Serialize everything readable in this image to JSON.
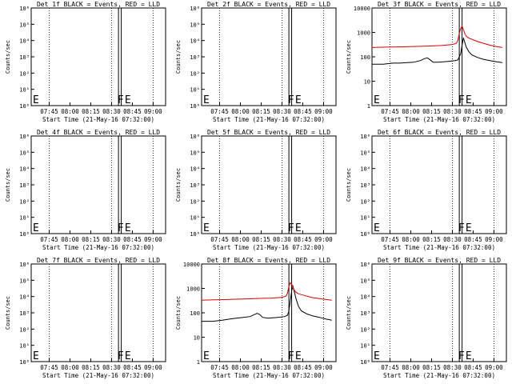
{
  "x_axis": {
    "label": "Start Time (21-May-16 07:32:00)",
    "ticks": [
      "07:45",
      "08:00",
      "08:15",
      "08:30",
      "08:45",
      "09:00"
    ],
    "tick_minutes": [
      13,
      28,
      43,
      58,
      73,
      88
    ],
    "range_minutes": [
      0,
      97
    ]
  },
  "y_axis": {
    "label": "Counts/sec"
  },
  "markers": {
    "flare_labels": [
      "F",
      "E"
    ]
  },
  "colors": {
    "events": "#000000",
    "lld": "#d40000"
  },
  "chart_data": [
    {
      "id": "det1",
      "type": "line",
      "title": "Det 1f BLACK = Events, RED = LLD",
      "yscale": "log",
      "ylim": [
        1,
        1000000
      ],
      "ytick_labels": [
        "10⁰",
        "10¹",
        "10²",
        "10³",
        "10⁴",
        "10⁵",
        "10⁶"
      ],
      "has_data": false,
      "series": []
    },
    {
      "id": "det2",
      "type": "line",
      "title": "Det 2f BLACK = Events, RED = LLD",
      "yscale": "log",
      "ylim": [
        1,
        1000000
      ],
      "ytick_labels": [
        "10⁰",
        "10¹",
        "10²",
        "10³",
        "10⁴",
        "10⁵",
        "10⁶"
      ],
      "has_data": false,
      "series": []
    },
    {
      "id": "det3",
      "type": "line",
      "title": "Det 3f BLACK = Events, RED = LLD",
      "yscale": "log",
      "ylim": [
        1,
        10000
      ],
      "ytick_labels": [
        "1",
        "10",
        "100",
        "1000",
        "10000"
      ],
      "has_data": true,
      "series": [
        {
          "role": "events",
          "color": "#000000",
          "x": [
            0,
            8,
            15,
            20,
            30,
            35,
            38,
            40,
            42,
            44,
            48,
            55,
            60,
            62,
            63,
            64,
            65,
            66,
            68,
            70,
            72,
            76,
            80,
            85,
            90,
            94
          ],
          "y": [
            50,
            50,
            55,
            55,
            60,
            70,
            85,
            90,
            75,
            60,
            60,
            65,
            70,
            75,
            100,
            130,
            300,
            600,
            250,
            160,
            120,
            95,
            80,
            70,
            62,
            58
          ]
        },
        {
          "role": "lld",
          "color": "#d40000",
          "x": [
            0,
            10,
            20,
            30,
            40,
            50,
            58,
            61,
            62,
            63,
            64,
            65,
            66,
            67,
            68,
            70,
            75,
            80,
            85,
            90,
            94
          ],
          "y": [
            240,
            250,
            255,
            265,
            275,
            290,
            320,
            360,
            480,
            900,
            1400,
            1800,
            1300,
            900,
            700,
            580,
            450,
            360,
            300,
            260,
            240
          ]
        }
      ]
    },
    {
      "id": "det4",
      "type": "line",
      "title": "Det 4f BLACK = Events, RED = LLD",
      "yscale": "log",
      "ylim": [
        1,
        1000000
      ],
      "ytick_labels": [
        "10⁰",
        "10¹",
        "10²",
        "10³",
        "10⁴",
        "10⁵",
        "10⁶"
      ],
      "has_data": false,
      "series": []
    },
    {
      "id": "det5",
      "type": "line",
      "title": "Det 5f BLACK = Events, RED = LLD",
      "yscale": "log",
      "ylim": [
        1,
        1000000
      ],
      "ytick_labels": [
        "10⁰",
        "10¹",
        "10²",
        "10³",
        "10⁴",
        "10⁵",
        "10⁶"
      ],
      "has_data": false,
      "series": []
    },
    {
      "id": "det6",
      "type": "line",
      "title": "Det 6f BLACK = Events, RED = LLD",
      "yscale": "log",
      "ylim": [
        1,
        1000000
      ],
      "ytick_labels": [
        "10⁰",
        "10¹",
        "10²",
        "10³",
        "10⁴",
        "10⁵",
        "10⁶"
      ],
      "has_data": false,
      "series": []
    },
    {
      "id": "det7",
      "type": "line",
      "title": "Det 7f BLACK = Events, RED = LLD",
      "yscale": "log",
      "ylim": [
        1,
        1000000
      ],
      "ytick_labels": [
        "10⁰",
        "10¹",
        "10²",
        "10³",
        "10⁴",
        "10⁵",
        "10⁶"
      ],
      "has_data": false,
      "series": []
    },
    {
      "id": "det8",
      "type": "line",
      "title": "Det 8f BLACK = Events, RED = LLD",
      "yscale": "log",
      "ylim": [
        1,
        10000
      ],
      "ytick_labels": [
        "1",
        "10",
        "100",
        "1000",
        "10000"
      ],
      "has_data": true,
      "series": [
        {
          "role": "events",
          "color": "#000000",
          "x": [
            0,
            8,
            15,
            20,
            25,
            30,
            35,
            40,
            42,
            44,
            48,
            55,
            60,
            62,
            63,
            64,
            65,
            66,
            68,
            70,
            72,
            76,
            80,
            85,
            90,
            94
          ],
          "y": [
            45,
            45,
            50,
            55,
            60,
            65,
            70,
            95,
            85,
            65,
            60,
            65,
            70,
            80,
            120,
            300,
            800,
            1200,
            400,
            180,
            120,
            90,
            75,
            65,
            55,
            50
          ]
        },
        {
          "role": "lld",
          "color": "#d40000",
          "x": [
            0,
            10,
            20,
            30,
            40,
            50,
            58,
            61,
            62,
            63,
            64,
            65,
            66,
            67,
            68,
            70,
            75,
            80,
            85,
            90,
            94
          ],
          "y": [
            330,
            340,
            355,
            370,
            385,
            400,
            430,
            480,
            650,
            1200,
            1700,
            1500,
            1100,
            850,
            700,
            600,
            500,
            420,
            380,
            350,
            330
          ]
        }
      ]
    },
    {
      "id": "det9",
      "type": "line",
      "title": "Det 9f BLACK = Events, RED = LLD",
      "yscale": "log",
      "ylim": [
        1,
        1000000
      ],
      "ytick_labels": [
        "10⁰",
        "10¹",
        "10²",
        "10³",
        "10⁴",
        "10⁵",
        "10⁶"
      ],
      "has_data": false,
      "series": []
    }
  ]
}
